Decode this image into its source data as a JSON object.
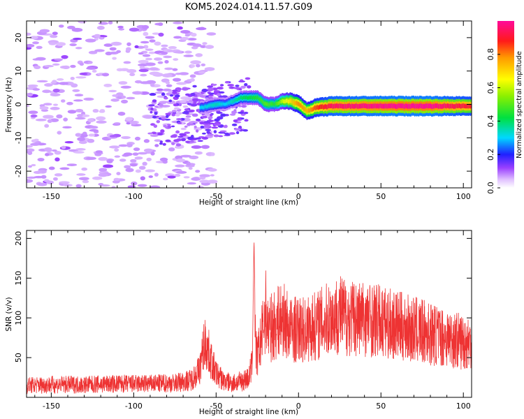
{
  "chart_data": [
    {
      "type": "heatmap",
      "title": "KOM5.2024.014.11.57.G09",
      "xlabel": "Height of straight line (km)",
      "ylabel": "Frequency (Hz)",
      "xlim": [
        -165,
        105
      ],
      "ylim": [
        -25,
        25
      ],
      "x_ticks": [
        -150,
        -100,
        -50,
        0,
        50,
        100
      ],
      "y_ticks": [
        -20,
        -10,
        0,
        10,
        20
      ],
      "colorbar": {
        "label": "Normalized spectral amplitude",
        "range": [
          0,
          1
        ],
        "ticks": [
          0.0,
          0.2,
          0.4,
          0.6,
          0.8
        ]
      },
      "ridge": [
        {
          "x": -60,
          "y": -1,
          "amp": 0.3
        },
        {
          "x": -50,
          "y": 0,
          "amp": 0.35
        },
        {
          "x": -45,
          "y": 0,
          "amp": 0.3
        },
        {
          "x": -35,
          "y": 2,
          "amp": 0.4
        },
        {
          "x": -25,
          "y": 2,
          "amp": 0.45
        },
        {
          "x": -20,
          "y": 0,
          "amp": 0.5
        },
        {
          "x": -15,
          "y": 0,
          "amp": 0.45
        },
        {
          "x": -10,
          "y": 1,
          "amp": 0.6
        },
        {
          "x": -5,
          "y": 1,
          "amp": 0.7
        },
        {
          "x": 0,
          "y": 0,
          "amp": 0.8
        },
        {
          "x": 5,
          "y": -2,
          "amp": 0.75
        },
        {
          "x": 10,
          "y": -1,
          "amp": 0.85
        },
        {
          "x": 20,
          "y": -0.5,
          "amp": 0.95
        },
        {
          "x": 40,
          "y": -0.5,
          "amp": 0.98
        },
        {
          "x": 60,
          "y": -0.5,
          "amp": 1.0
        },
        {
          "x": 80,
          "y": -0.5,
          "amp": 1.0
        },
        {
          "x": 90,
          "y": -0.5,
          "amp": 0.95
        },
        {
          "x": 105,
          "y": -0.5,
          "amp": 0.9
        }
      ]
    },
    {
      "type": "line",
      "xlabel": "Height of straight line (km)",
      "ylabel": "SNR (v/v)",
      "xlim": [
        -165,
        105
      ],
      "ylim": [
        0,
        210
      ],
      "x_ticks": [
        -150,
        -100,
        -50,
        0,
        50,
        100
      ],
      "y_ticks": [
        50,
        100,
        150,
        200
      ],
      "color": "#ee3333",
      "series": [
        {
          "x": [
            -165,
            -150,
            -130,
            -110,
            -90,
            -75,
            -65,
            -60,
            -57,
            -55,
            -52,
            -50,
            -45,
            -40,
            -35,
            -30,
            -28,
            -27,
            -26,
            -25,
            -22,
            -20,
            -18,
            -15,
            -12,
            -10,
            -8,
            -5,
            0,
            5,
            10,
            15,
            20,
            25,
            30,
            40,
            50,
            60,
            70,
            80,
            90,
            100,
            105
          ],
          "y": [
            15,
            16,
            16,
            17,
            17,
            18,
            22,
            35,
            70,
            60,
            40,
            30,
            20,
            18,
            20,
            25,
            45,
            200,
            60,
            50,
            80,
            110,
            85,
            90,
            95,
            100,
            95,
            85,
            85,
            85,
            90,
            95,
            100,
            105,
            100,
            100,
            95,
            90,
            85,
            80,
            75,
            70,
            68
          ]
        }
      ]
    }
  ]
}
